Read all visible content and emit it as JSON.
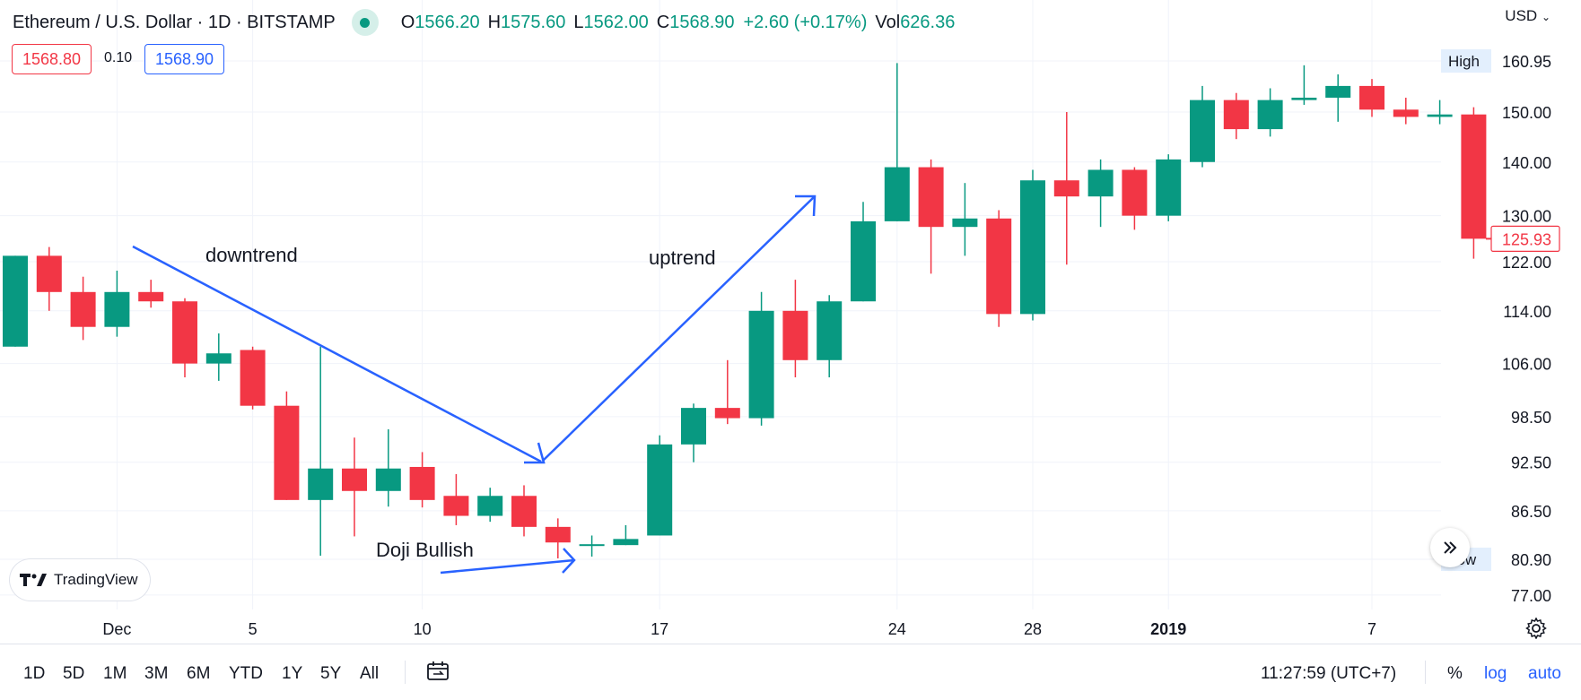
{
  "header": {
    "title": "Ethereum / U.S. Dollar · 1D · BITSTAMP",
    "open_label": "O",
    "open": "1566.20",
    "high_label": "H",
    "high": "1575.60",
    "low_label": "L",
    "low": "1562.00",
    "close_label": "C",
    "close": "1568.90",
    "change": "+2.60 (+0.17%)",
    "vol_label": "Vol",
    "vol": "626.36"
  },
  "trade": {
    "bid": "1568.80",
    "spread": "0.10",
    "ask": "1568.90"
  },
  "currency": "USD",
  "brand": "TradingView",
  "toolbar": {
    "ranges": [
      "1D",
      "5D",
      "1M",
      "3M",
      "6M",
      "YTD",
      "1Y",
      "5Y",
      "All"
    ],
    "clock": "11:27:59 (UTC+7)",
    "percent": "%",
    "log": "log",
    "auto": "auto"
  },
  "annotations": {
    "downtrend": "downtrend",
    "uptrend": "uptrend",
    "doji": "Doji Bullish"
  },
  "colors": {
    "up": "#089981",
    "down": "#f23645",
    "arrow": "#2962ff",
    "grid": "#f0f3fa",
    "axis_text": "#131722"
  },
  "chart_data": {
    "type": "candlestick",
    "scale": "log",
    "y_ticks": [
      77.0,
      80.9,
      86.5,
      92.5,
      98.5,
      106.0,
      114.0,
      122.0,
      130.0,
      140.0,
      150.0,
      160.95
    ],
    "ylim": [
      74.5,
      172
    ],
    "high_label": "High",
    "high_value": "160.95",
    "low_label": "Low",
    "low_value": "80.90",
    "last_price": "125.93",
    "x_tick_labels": [
      {
        "index": 3,
        "label": "Dec"
      },
      {
        "index": 7,
        "label": "5"
      },
      {
        "index": 12,
        "label": "10"
      },
      {
        "index": 19,
        "label": "17"
      },
      {
        "index": 26,
        "label": "24"
      },
      {
        "index": 30,
        "label": "28"
      },
      {
        "index": 34,
        "label": "2019"
      },
      {
        "index": 40,
        "label": "7"
      }
    ],
    "candles": [
      {
        "o": 108.5,
        "h": 123.0,
        "l": 108.5,
        "c": 123.0
      },
      {
        "o": 123.0,
        "h": 124.5,
        "l": 114.0,
        "c": 117.0
      },
      {
        "o": 117.0,
        "h": 119.5,
        "l": 109.5,
        "c": 111.5
      },
      {
        "o": 111.5,
        "h": 120.5,
        "l": 110.0,
        "c": 117.0
      },
      {
        "o": 117.0,
        "h": 119.0,
        "l": 114.5,
        "c": 115.5
      },
      {
        "o": 115.5,
        "h": 116.0,
        "l": 104.0,
        "c": 106.0
      },
      {
        "o": 106.0,
        "h": 110.5,
        "l": 103.5,
        "c": 107.5
      },
      {
        "o": 108.0,
        "h": 108.5,
        "l": 99.5,
        "c": 100.0
      },
      {
        "o": 100.0,
        "h": 102.0,
        "l": 87.8,
        "c": 87.8
      },
      {
        "o": 87.8,
        "h": 108.5,
        "l": 81.3,
        "c": 91.7
      },
      {
        "o": 91.7,
        "h": 95.7,
        "l": 83.5,
        "c": 88.9
      },
      {
        "o": 88.9,
        "h": 96.8,
        "l": 87.0,
        "c": 91.7
      },
      {
        "o": 91.9,
        "h": 93.8,
        "l": 86.9,
        "c": 87.8
      },
      {
        "o": 88.3,
        "h": 91.0,
        "l": 84.8,
        "c": 85.9
      },
      {
        "o": 85.9,
        "h": 89.3,
        "l": 85.2,
        "c": 88.3
      },
      {
        "o": 88.3,
        "h": 89.6,
        "l": 83.5,
        "c": 84.6
      },
      {
        "o": 84.6,
        "h": 85.6,
        "l": 81.0,
        "c": 82.8
      },
      {
        "o": 82.5,
        "h": 83.6,
        "l": 81.2,
        "c": 82.6
      },
      {
        "o": 82.5,
        "h": 84.8,
        "l": 82.5,
        "c": 83.2
      },
      {
        "o": 83.6,
        "h": 96.0,
        "l": 83.6,
        "c": 94.8
      },
      {
        "o": 94.8,
        "h": 100.3,
        "l": 92.5,
        "c": 99.7
      },
      {
        "o": 99.7,
        "h": 106.5,
        "l": 97.5,
        "c": 98.3
      },
      {
        "o": 98.3,
        "h": 117.0,
        "l": 97.3,
        "c": 114.0
      },
      {
        "o": 114.0,
        "h": 119.0,
        "l": 104.0,
        "c": 106.5
      },
      {
        "o": 106.5,
        "h": 116.5,
        "l": 104.0,
        "c": 115.5
      },
      {
        "o": 115.5,
        "h": 132.5,
        "l": 115.5,
        "c": 129.0
      },
      {
        "o": 129.0,
        "h": 160.5,
        "l": 129.0,
        "c": 139.0
      },
      {
        "o": 139.0,
        "h": 140.5,
        "l": 120.0,
        "c": 128.0
      },
      {
        "o": 128.0,
        "h": 136.0,
        "l": 123.0,
        "c": 129.5
      },
      {
        "o": 129.5,
        "h": 131.0,
        "l": 111.5,
        "c": 113.5
      },
      {
        "o": 113.5,
        "h": 138.5,
        "l": 112.5,
        "c": 136.5
      },
      {
        "o": 136.5,
        "h": 150.0,
        "l": 121.5,
        "c": 133.5
      },
      {
        "o": 133.5,
        "h": 140.5,
        "l": 128.0,
        "c": 138.5
      },
      {
        "o": 138.5,
        "h": 139.0,
        "l": 127.5,
        "c": 130.0
      },
      {
        "o": 130.0,
        "h": 141.5,
        "l": 129.0,
        "c": 140.5
      },
      {
        "o": 140.0,
        "h": 155.5,
        "l": 139.0,
        "c": 152.5
      },
      {
        "o": 152.5,
        "h": 154.0,
        "l": 144.5,
        "c": 146.5
      },
      {
        "o": 146.5,
        "h": 155.0,
        "l": 145.0,
        "c": 152.5
      },
      {
        "o": 152.5,
        "h": 160.0,
        "l": 151.5,
        "c": 153.0
      },
      {
        "o": 153.0,
        "h": 158.0,
        "l": 148.0,
        "c": 155.5
      },
      {
        "o": 155.5,
        "h": 157.0,
        "l": 149.0,
        "c": 150.5
      },
      {
        "o": 150.5,
        "h": 153.0,
        "l": 147.5,
        "c": 149.0
      },
      {
        "o": 149.0,
        "h": 152.5,
        "l": 147.5,
        "c": 149.5
      },
      {
        "o": 149.5,
        "h": 151.0,
        "l": 122.5,
        "c": 125.93
      }
    ]
  }
}
